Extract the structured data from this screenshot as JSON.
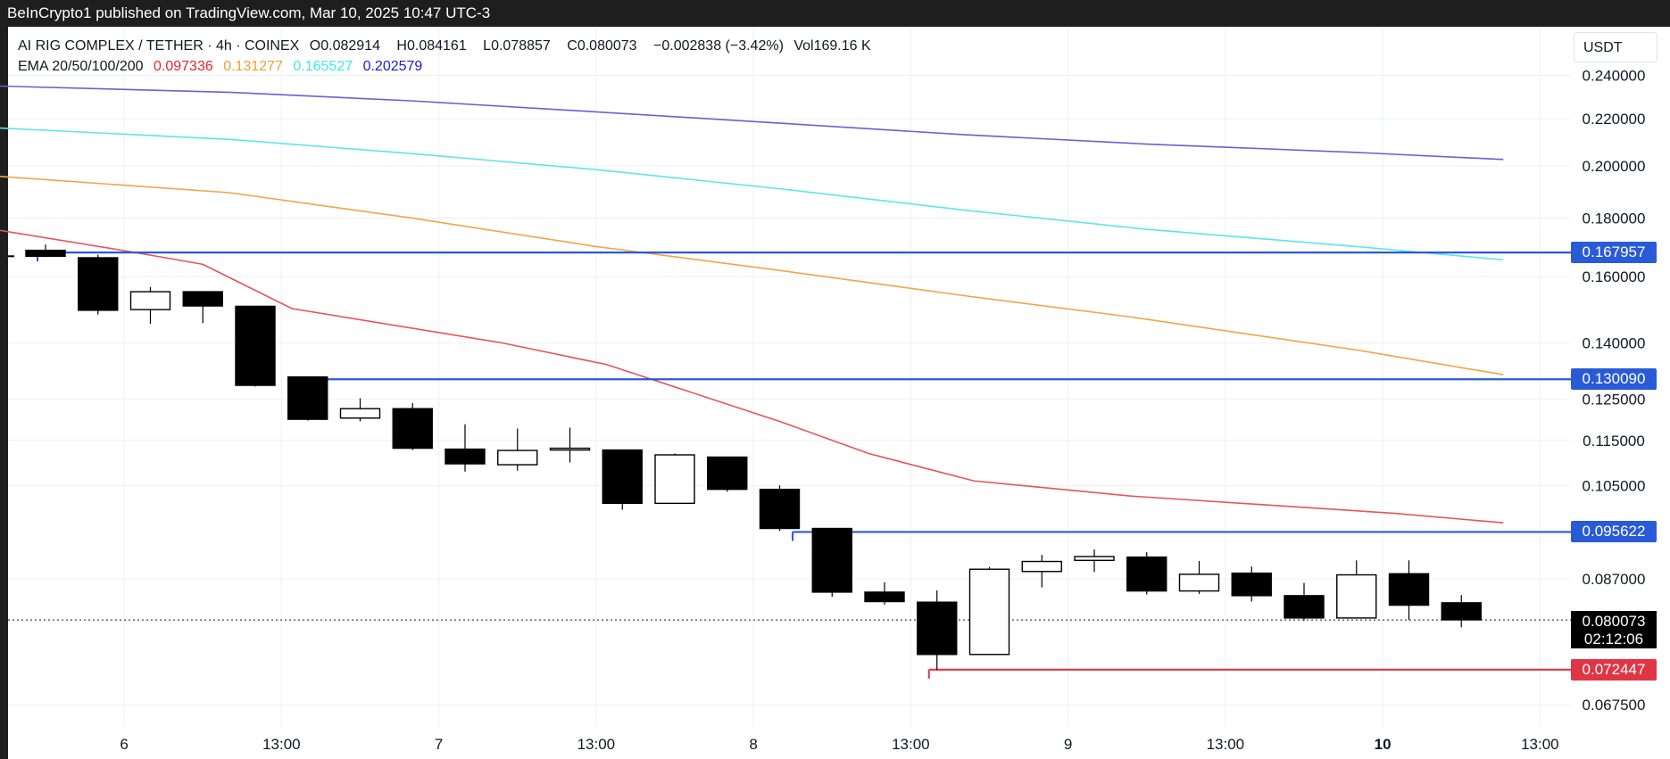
{
  "header": {
    "published": "BeInCrypto1 published on TradingView.com, Mar 10, 2025 10:47 UTC-3"
  },
  "legend": {
    "symbol": "AI RIG COMPLEX / TETHER · 4h · COINEX",
    "open_key": "O",
    "open": "0.082914",
    "high_key": "H",
    "high": "0.084161",
    "low_key": "L",
    "low": "0.078857",
    "close_key": "C",
    "close": "0.080073",
    "change": "−0.002838 (−3.42%)",
    "vol_key": "Vol",
    "vol": "169.16 K",
    "ema_label": "EMA 20/50/100/200",
    "ema20": "0.097336",
    "ema50": "0.131277",
    "ema100": "0.165527",
    "ema200": "0.202579"
  },
  "currency": "USDT",
  "price_tags": {
    "level1": "0.167957",
    "level2": "0.130090",
    "level3": "0.095622",
    "support": "0.072447",
    "last": "0.080073",
    "countdown": "02:12:06"
  },
  "colors": {
    "ema20": "#e5545b",
    "ema50": "#f0a44a",
    "ema100": "#5ce6e6",
    "ema200": "#6b5fd3",
    "level": "#2a5bd7",
    "support": "#e03545",
    "candle_down": "#000000",
    "candle_up": "#ffffff",
    "legend_ema20": "#e5232f",
    "legend_ema50": "#f0a030",
    "legend_ema100": "#3ee8e8",
    "legend_ema200": "#1a1adb"
  },
  "chart_data": {
    "type": "candlestick",
    "title": "AI RIG COMPLEX / TETHER · 4h · COINEX",
    "y_scale": "log",
    "y_ticks": [
      "0.240000",
      "0.220000",
      "0.200000",
      "0.180000",
      "0.160000",
      "0.140000",
      "0.125000",
      "0.115000",
      "0.105000",
      "0.087000",
      "0.067500"
    ],
    "x_ticks": [
      "6",
      "13:00",
      "7",
      "13:00",
      "8",
      "13:00",
      "9",
      "13:00",
      "10",
      "13:00"
    ],
    "x_tick_bold": [
      false,
      false,
      false,
      false,
      false,
      false,
      false,
      false,
      true,
      false
    ],
    "candles": [
      {
        "o": 0.1687,
        "h": 0.1707,
        "l": 0.1664,
        "c": 0.1667
      },
      {
        "o": 0.1662,
        "h": 0.1672,
        "l": 0.1482,
        "c": 0.1495
      },
      {
        "o": 0.1497,
        "h": 0.1567,
        "l": 0.1455,
        "c": 0.1552
      },
      {
        "o": 0.1552,
        "h": 0.1552,
        "l": 0.1457,
        "c": 0.1508
      },
      {
        "o": 0.1507,
        "h": 0.1507,
        "l": 0.1282,
        "c": 0.1285
      },
      {
        "o": 0.1307,
        "h": 0.1307,
        "l": 0.1197,
        "c": 0.12
      },
      {
        "o": 0.1203,
        "h": 0.1252,
        "l": 0.1195,
        "c": 0.1226
      },
      {
        "o": 0.1226,
        "h": 0.124,
        "l": 0.1128,
        "c": 0.1132
      },
      {
        "o": 0.113,
        "h": 0.1188,
        "l": 0.108,
        "c": 0.1097
      },
      {
        "o": 0.1095,
        "h": 0.1178,
        "l": 0.1082,
        "c": 0.1127
      },
      {
        "o": 0.113,
        "h": 0.118,
        "l": 0.11,
        "c": 0.113
      },
      {
        "o": 0.1128,
        "h": 0.1128,
        "l": 0.1,
        "c": 0.1013
      },
      {
        "o": 0.1013,
        "h": 0.112,
        "l": 0.1013,
        "c": 0.1117
      },
      {
        "o": 0.1112,
        "h": 0.1112,
        "l": 0.1037,
        "c": 0.1042
      },
      {
        "o": 0.1042,
        "h": 0.105,
        "l": 0.0958,
        "c": 0.0963
      },
      {
        "o": 0.0963,
        "h": 0.0963,
        "l": 0.0839,
        "c": 0.0847
      },
      {
        "o": 0.0847,
        "h": 0.0864,
        "l": 0.0826,
        "c": 0.0831
      },
      {
        "o": 0.083,
        "h": 0.085,
        "l": 0.0724,
        "c": 0.0747
      },
      {
        "o": 0.0747,
        "h": 0.0891,
        "l": 0.0747,
        "c": 0.0887
      },
      {
        "o": 0.0883,
        "h": 0.0913,
        "l": 0.0855,
        "c": 0.0901
      },
      {
        "o": 0.0903,
        "h": 0.0923,
        "l": 0.0882,
        "c": 0.091
      },
      {
        "o": 0.0909,
        "h": 0.0918,
        "l": 0.0843,
        "c": 0.0849
      },
      {
        "o": 0.0849,
        "h": 0.0902,
        "l": 0.0844,
        "c": 0.0878
      },
      {
        "o": 0.088,
        "h": 0.0892,
        "l": 0.0831,
        "c": 0.0841
      },
      {
        "o": 0.0841,
        "h": 0.0863,
        "l": 0.08,
        "c": 0.0804
      },
      {
        "o": 0.0804,
        "h": 0.0903,
        "l": 0.0804,
        "c": 0.0877
      },
      {
        "o": 0.0879,
        "h": 0.0903,
        "l": 0.0801,
        "c": 0.0825
      },
      {
        "o": 0.0829,
        "h": 0.0842,
        "l": 0.0789,
        "c": 0.0801
      }
    ],
    "ema": [
      {
        "name": "EMA 20",
        "color_key": "ema20",
        "points": [
          [
            -1,
            0.176
          ],
          [
            1.7,
            0.168
          ],
          [
            3,
            0.164
          ],
          [
            4.7,
            0.15
          ],
          [
            8.7,
            0.14
          ],
          [
            10.7,
            0.134
          ],
          [
            14.0,
            0.1195
          ],
          [
            15.7,
            0.112
          ],
          [
            17.7,
            0.106
          ],
          [
            20.7,
            0.1028
          ],
          [
            25.7,
            0.0993
          ],
          [
            27.8,
            0.0974
          ]
        ]
      },
      {
        "name": "EMA 50",
        "color_key": "ema50",
        "points": [
          [
            -1,
            0.196
          ],
          [
            3.5,
            0.1895
          ],
          [
            7,
            0.18
          ],
          [
            10.5,
            0.17
          ],
          [
            14.0,
            0.162
          ],
          [
            17.5,
            0.154
          ],
          [
            20.7,
            0.1475
          ],
          [
            25.0,
            0.138
          ],
          [
            27.8,
            0.1313
          ]
        ]
      },
      {
        "name": "EMA 100",
        "color_key": "ema100",
        "points": [
          [
            -1,
            0.216
          ],
          [
            3.5,
            0.211
          ],
          [
            7,
            0.205
          ],
          [
            10.5,
            0.1985
          ],
          [
            14.0,
            0.191
          ],
          [
            17.5,
            0.183
          ],
          [
            21.0,
            0.176
          ],
          [
            25.0,
            0.17
          ],
          [
            27.8,
            0.1655
          ]
        ]
      },
      {
        "name": "EMA 200",
        "color_key": "ema200",
        "points": [
          [
            -1,
            0.235
          ],
          [
            3.5,
            0.232
          ],
          [
            7,
            0.228
          ],
          [
            10.5,
            0.223
          ],
          [
            14.0,
            0.218
          ],
          [
            17.5,
            0.213
          ],
          [
            21.0,
            0.209
          ],
          [
            25.0,
            0.2055
          ],
          [
            27.8,
            0.2026
          ]
        ]
      }
    ],
    "levels": [
      {
        "value": 0.167957,
        "from": 0,
        "color_key": "level",
        "label_key": "level1"
      },
      {
        "value": 0.13009,
        "from": 5,
        "color_key": "level",
        "label_key": "level2"
      },
      {
        "value": 0.095622,
        "from": 14.4,
        "color_key": "level",
        "label_key": "level3"
      },
      {
        "value": 0.072447,
        "from": 17,
        "color_key": "support",
        "label_key": "support"
      }
    ],
    "last_price": 0.080073
  }
}
